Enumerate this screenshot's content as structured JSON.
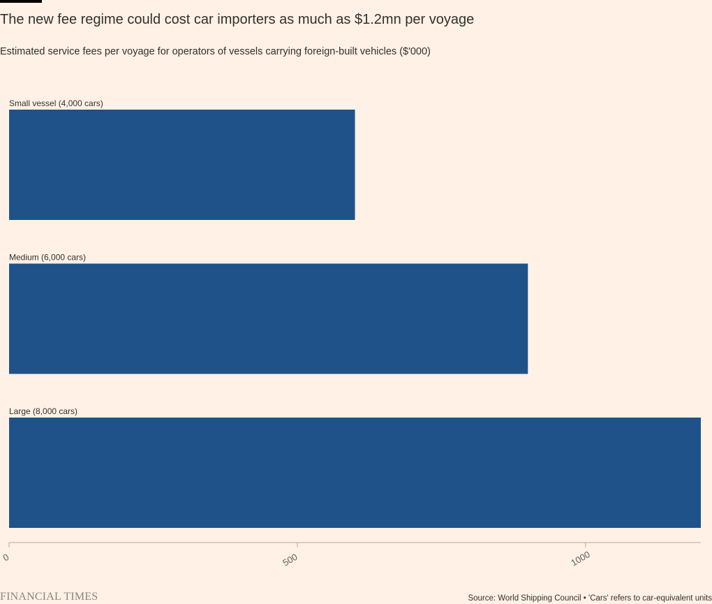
{
  "header": {
    "title": "The new fee regime could cost car importers as much as $1.2mn per voyage",
    "subtitle": "Estimated service fees per voyage for operators of vessels carrying foreign-built vehicles ($'000)"
  },
  "chart_data": {
    "type": "bar",
    "orientation": "horizontal",
    "categories": [
      "Small vessel (4,000 cars)",
      "Medium (6,000 cars)",
      "Large (8,000 cars)"
    ],
    "values": [
      600,
      900,
      1200
    ],
    "xlim": [
      0,
      1200
    ],
    "xticks": [
      0,
      500,
      1000
    ],
    "tick_labels": [
      "0",
      "500",
      "1000"
    ],
    "grid": false,
    "bar_color": "#1f5289",
    "axis_color": "#b3aca5"
  },
  "footer": {
    "logo_text": "FINANCIAL TIMES",
    "source": "Source: World Shipping Council • 'Cars' refers to car-equivalent units"
  },
  "colors": {
    "background": "#fff1e5",
    "bar": "#1f5289"
  }
}
